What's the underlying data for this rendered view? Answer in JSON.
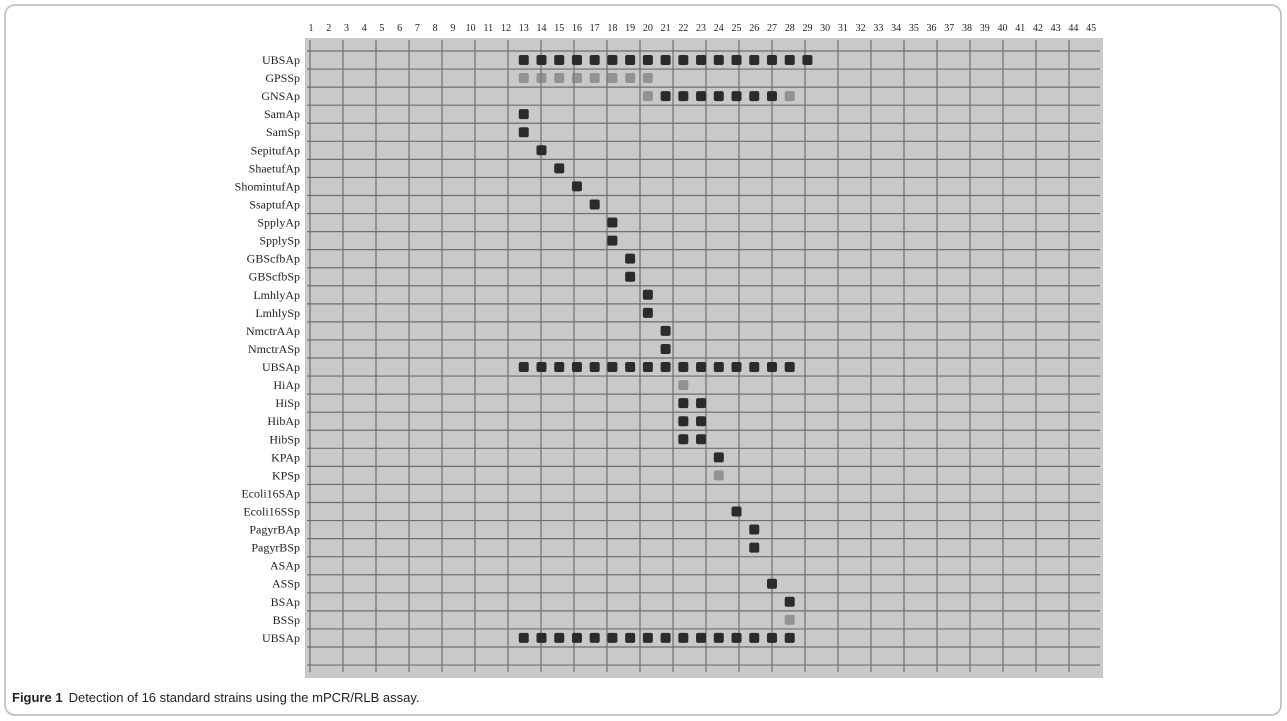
{
  "figure": {
    "columns": [
      "1",
      "2",
      "3",
      "4",
      "5",
      "6",
      "7",
      "8",
      "9",
      "10",
      "11",
      "12",
      "13",
      "14",
      "15",
      "16",
      "17",
      "18",
      "19",
      "20",
      "21",
      "22",
      "23",
      "24",
      "25",
      "26",
      "27",
      "28",
      "29",
      "30",
      "31",
      "32",
      "33",
      "34",
      "35",
      "36",
      "37",
      "38",
      "39",
      "40",
      "41",
      "42",
      "43",
      "44",
      "45"
    ],
    "rows": [
      "UBSAp",
      "GPSSp",
      "GNSAp",
      "SamAp",
      "SamSp",
      "SepitufAp",
      "ShaetufAp",
      "ShomintufAp",
      "SsaptufAp",
      "SpplyAp",
      "SpplySp",
      "GBScfbAp",
      "GBScfbSp",
      "LmhlyAp",
      "LmhlySp",
      "NmctrAAp",
      "NmctrASp",
      "UBSAp",
      "HiAp",
      "HiSp",
      "HibAp",
      "HibSp",
      "KPAp",
      "KPSp",
      "Ecoli16SAp",
      "Ecoli16SSp",
      "PagyrBAp",
      "PagyrBSp",
      "ASAp",
      "ASSp",
      "BSAp",
      "BSSp",
      "UBSAp"
    ],
    "caption_label": "Figure 1",
    "caption_text": "Detection of 16 standard strains using the mPCR/RLB assay."
  }
}
